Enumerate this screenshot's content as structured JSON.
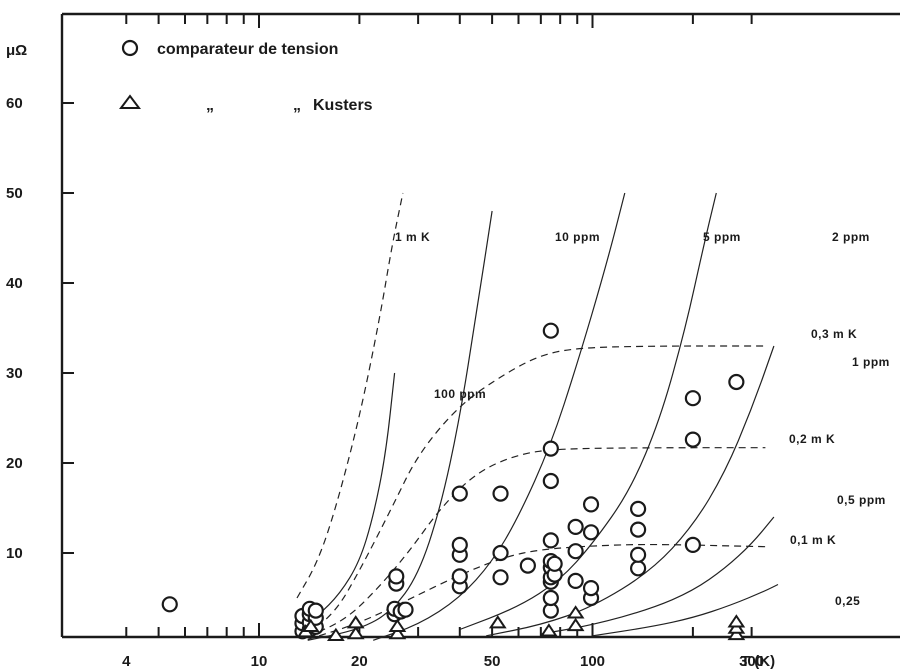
{
  "chart_data": {
    "type": "scatter",
    "title": "",
    "xlabel": "T (K)",
    "ylabel": "μΩ",
    "xscale": "log",
    "xlim": [
      3.1,
      380
    ],
    "ylim": [
      0,
      65
    ],
    "x_tick_labels": [
      {
        "value": 4,
        "label": "4"
      },
      {
        "value": 10,
        "label": "10"
      },
      {
        "value": 20,
        "label": "20"
      },
      {
        "value": 50,
        "label": "50"
      },
      {
        "value": 100,
        "label": "100"
      },
      {
        "value": 300,
        "label": "300"
      }
    ],
    "x_axis_title": "T (K)",
    "y_tick_labels": [
      {
        "value": 10,
        "label": "10"
      },
      {
        "value": 20,
        "label": "20"
      },
      {
        "value": 30,
        "label": "30"
      },
      {
        "value": 40,
        "label": "40"
      },
      {
        "value": 50,
        "label": "50"
      },
      {
        "value": 60,
        "label": "60"
      }
    ],
    "y_unit_label": "μΩ",
    "legend": [
      {
        "marker": "circle",
        "text": "comparateur de tension"
      },
      {
        "marker": "triangle",
        "text1": "„",
        "text2": "„",
        "text3": "Kusters"
      }
    ],
    "series": [
      {
        "name": "comparateur de tension",
        "marker": "circle",
        "points": [
          [
            5.4,
            4.3
          ],
          [
            13.5,
            1.3
          ],
          [
            13.5,
            2.2
          ],
          [
            13.5,
            3.0
          ],
          [
            14.2,
            1.5
          ],
          [
            14.2,
            2.3
          ],
          [
            14.2,
            3.2
          ],
          [
            14.2,
            3.8
          ],
          [
            14.8,
            1.8
          ],
          [
            14.8,
            2.8
          ],
          [
            14.8,
            3.6
          ],
          [
            25.5,
            3.2
          ],
          [
            25.5,
            3.8
          ],
          [
            25.8,
            6.6
          ],
          [
            25.8,
            7.4
          ],
          [
            26.6,
            3.5
          ],
          [
            27.5,
            3.7
          ],
          [
            40,
            6.3
          ],
          [
            40,
            7.4
          ],
          [
            40,
            9.8
          ],
          [
            40,
            10.9
          ],
          [
            40,
            16.6
          ],
          [
            53,
            7.3
          ],
          [
            53,
            10.0
          ],
          [
            53,
            16.6
          ],
          [
            64,
            8.6
          ],
          [
            75,
            3.6
          ],
          [
            75,
            5.0
          ],
          [
            75,
            6.8
          ],
          [
            75,
            7.3
          ],
          [
            75,
            8.4
          ],
          [
            75,
            9.1
          ],
          [
            75,
            11.4
          ],
          [
            75,
            18.0
          ],
          [
            75,
            21.6
          ],
          [
            75,
            34.7
          ],
          [
            77,
            7.6
          ],
          [
            77,
            8.8
          ],
          [
            89,
            6.9
          ],
          [
            89,
            10.2
          ],
          [
            89,
            12.9
          ],
          [
            99,
            5.0
          ],
          [
            99,
            6.1
          ],
          [
            99,
            12.3
          ],
          [
            99,
            15.4
          ],
          [
            137,
            8.3
          ],
          [
            137,
            9.8
          ],
          [
            137,
            12.6
          ],
          [
            137,
            14.9
          ],
          [
            200,
            10.9
          ],
          [
            200,
            22.6
          ],
          [
            200,
            27.2
          ],
          [
            270,
            29.0
          ]
        ]
      },
      {
        "name": "Kusters",
        "marker": "triangle",
        "points": [
          [
            13.8,
            1.2
          ],
          [
            14.3,
            1.8
          ],
          [
            17,
            0.8
          ],
          [
            19.5,
            1.0
          ],
          [
            19.5,
            2.2
          ],
          [
            26,
            1.0
          ],
          [
            26,
            1.8
          ],
          [
            52,
            2.2
          ],
          [
            74,
            1.3
          ],
          [
            89,
            1.9
          ],
          [
            89,
            3.3
          ],
          [
            270,
            0.9
          ],
          [
            270,
            1.6
          ],
          [
            270,
            2.3
          ]
        ]
      }
    ],
    "curves": [
      {
        "name": "1 mK",
        "style": "dashed",
        "label": "1 m K",
        "points": [
          [
            13,
            5
          ],
          [
            15,
            9
          ],
          [
            17,
            15
          ],
          [
            20,
            25
          ],
          [
            23,
            36
          ],
          [
            25,
            44
          ],
          [
            27,
            50
          ]
        ]
      },
      {
        "name": "100 ppm",
        "style": "solid",
        "label": "100 ppm",
        "points": [
          [
            13,
            1.5
          ],
          [
            15,
            3
          ],
          [
            17.5,
            5.5
          ],
          [
            20,
            9
          ],
          [
            22,
            14
          ],
          [
            24,
            21
          ],
          [
            25.5,
            30
          ]
        ]
      },
      {
        "name": "10 ppm",
        "style": "solid",
        "label": "10 ppm",
        "points": [
          [
            14,
            0.3
          ],
          [
            20,
            1.5
          ],
          [
            25,
            3.5
          ],
          [
            30,
            7.5
          ],
          [
            35,
            15
          ],
          [
            40,
            25
          ],
          [
            45,
            37
          ],
          [
            50,
            48
          ]
        ]
      },
      {
        "name": "5 ppm",
        "style": "solid",
        "label": "5 ppm",
        "points": [
          [
            22,
            0.3
          ],
          [
            30,
            2
          ],
          [
            40,
            5
          ],
          [
            50,
            9
          ],
          [
            60,
            14
          ],
          [
            75,
            22
          ],
          [
            90,
            31
          ],
          [
            110,
            42
          ],
          [
            125,
            50
          ]
        ]
      },
      {
        "name": "2 ppm",
        "style": "solid",
        "label": "2 ppm",
        "points": [
          [
            40,
            1.5
          ],
          [
            60,
            4
          ],
          [
            80,
            7
          ],
          [
            100,
            11
          ],
          [
            130,
            17
          ],
          [
            160,
            25
          ],
          [
            190,
            35
          ],
          [
            215,
            44
          ],
          [
            235,
            50
          ]
        ]
      },
      {
        "name": "1 ppm",
        "style": "solid",
        "label": "1 ppm",
        "points": [
          [
            48,
            0.8
          ],
          [
            70,
            2
          ],
          [
            100,
            4
          ],
          [
            150,
            8
          ],
          [
            200,
            13
          ],
          [
            250,
            19
          ],
          [
            300,
            26
          ],
          [
            350,
            33
          ]
        ]
      },
      {
        "name": "0.5 ppm",
        "style": "solid",
        "label": "0,5 ppm",
        "points": [
          [
            70,
            1
          ],
          [
            100,
            2
          ],
          [
            150,
            3.8
          ],
          [
            200,
            5.8
          ],
          [
            250,
            8.3
          ],
          [
            300,
            11
          ],
          [
            350,
            14
          ]
        ]
      },
      {
        "name": "0.25",
        "style": "solid",
        "label": "0,25",
        "points": [
          [
            100,
            0.8
          ],
          [
            150,
            1.8
          ],
          [
            200,
            2.8
          ],
          [
            260,
            4.2
          ],
          [
            330,
            5.8
          ],
          [
            360,
            6.5
          ]
        ]
      },
      {
        "name": "0.3 mK",
        "style": "dashed",
        "label": "0,3 m K",
        "points": [
          [
            14,
            1
          ],
          [
            17,
            3.5
          ],
          [
            20,
            8
          ],
          [
            25,
            15
          ],
          [
            30,
            21
          ],
          [
            40,
            26.5
          ],
          [
            55,
            30
          ],
          [
            70,
            32
          ],
          [
            90,
            32.8
          ],
          [
            150,
            33
          ],
          [
            330,
            33
          ]
        ]
      },
      {
        "name": "0.2 mK",
        "style": "dashed",
        "label": "0,2 m K",
        "points": [
          [
            14,
            0.7
          ],
          [
            18,
            2.5
          ],
          [
            22,
            5.5
          ],
          [
            28,
            10
          ],
          [
            35,
            15
          ],
          [
            45,
            19
          ],
          [
            60,
            21
          ],
          [
            80,
            21.6
          ],
          [
            150,
            21.7
          ],
          [
            330,
            21.7
          ]
        ]
      },
      {
        "name": "0.1 mK",
        "style": "dashed",
        "label": "0,1 m K",
        "points": [
          [
            14,
            0.4
          ],
          [
            20,
            2.2
          ],
          [
            28,
            4.8
          ],
          [
            40,
            7.6
          ],
          [
            55,
            9.6
          ],
          [
            70,
            10.4
          ],
          [
            100,
            10.8
          ],
          [
            150,
            11
          ],
          [
            330,
            10.7
          ]
        ]
      }
    ]
  }
}
